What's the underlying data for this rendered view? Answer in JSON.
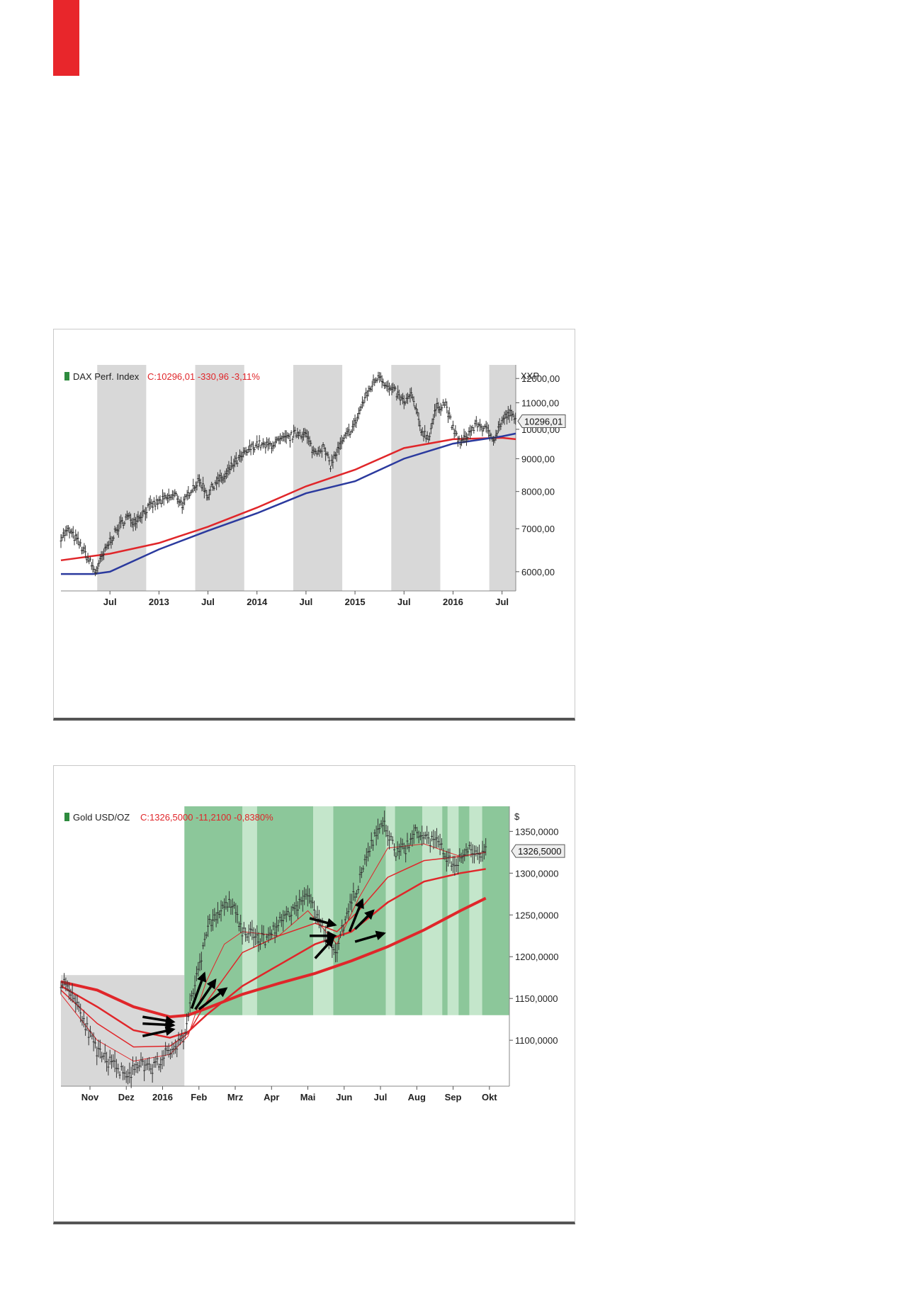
{
  "colors": {
    "accent": "#e8262b",
    "ma_red": "#e0262a",
    "ma_blue": "#2b3a9e",
    "shade_grey": "#d8d8d8",
    "shade_green": "#8cc79a",
    "shade_lightgreen": "#c4e6cb"
  },
  "chart_data": [
    {
      "type": "line",
      "title": "DAX Perf. Index",
      "quote": "C:10296,01 -330,96 -3,11%",
      "axis_unit": "XXP",
      "last_value_label": "10296,01",
      "scale": "log",
      "ylim": [
        5600,
        12600
      ],
      "yticks": [
        6000,
        7000,
        8000,
        9000,
        10000,
        11000,
        12000
      ],
      "ytick_labels": [
        "6000,00",
        "7000,00",
        "8000,00",
        "9000,00",
        "10000,00",
        "11000,00",
        "12000,00"
      ],
      "x_range": [
        "2012-05",
        "2016-09"
      ],
      "xticks": [
        {
          "t": 2012.5,
          "label": "Jul"
        },
        {
          "t": 2013.0,
          "label": "2013"
        },
        {
          "t": 2013.5,
          "label": "Jul"
        },
        {
          "t": 2014.0,
          "label": "2014"
        },
        {
          "t": 2014.5,
          "label": "Jul"
        },
        {
          "t": 2015.0,
          "label": "2015"
        },
        {
          "t": 2015.5,
          "label": "Jul"
        },
        {
          "t": 2016.0,
          "label": "2016"
        },
        {
          "t": 2016.5,
          "label": "Jul"
        }
      ],
      "shaded_periods": [
        [
          2012.37,
          2012.87
        ],
        [
          2013.37,
          2013.87
        ],
        [
          2014.37,
          2014.87
        ],
        [
          2015.37,
          2015.87
        ],
        [
          2016.37,
          2016.64
        ]
      ],
      "series": [
        {
          "kind": "price",
          "x": [
            2012.0,
            2012.08,
            2012.17,
            2012.25,
            2012.35,
            2012.42,
            2012.5,
            2012.58,
            2012.67,
            2012.75,
            2012.83,
            2012.92,
            2013.0,
            2013.08,
            2013.17,
            2013.25,
            2013.33,
            2013.42,
            2013.5,
            2013.58,
            2013.67,
            2013.75,
            2013.83,
            2013.92,
            2014.0,
            2014.08,
            2014.17,
            2014.25,
            2014.33,
            2014.42,
            2014.5,
            2014.58,
            2014.67,
            2014.75,
            2014.83,
            2014.92,
            2015.0,
            2015.08,
            2015.17,
            2015.25,
            2015.33,
            2015.42,
            2015.5,
            2015.58,
            2015.67,
            2015.75,
            2015.83,
            2015.92,
            2016.0,
            2016.08,
            2016.17,
            2016.25,
            2016.33,
            2016.42,
            2016.5,
            2016.58,
            2016.64
          ],
          "values": [
            6800,
            6950,
            6700,
            6400,
            6000,
            6300,
            6700,
            7000,
            7300,
            7200,
            7400,
            7600,
            7700,
            7800,
            7900,
            7600,
            8100,
            8300,
            7900,
            8300,
            8400,
            8800,
            9000,
            9300,
            9500,
            9400,
            9500,
            9600,
            9700,
            9900,
            9800,
            9200,
            9400,
            8800,
            9300,
            9800,
            10200,
            11000,
            11700,
            12200,
            11600,
            11400,
            11000,
            11300,
            10000,
            9700,
            10800,
            11000,
            10000,
            9500,
            9900,
            10200,
            10000,
            9700,
            10300,
            10600,
            10296
          ]
        },
        {
          "kind": "moving_average",
          "color": "red",
          "x": [
            2012.0,
            2012.5,
            2013.0,
            2013.5,
            2014.0,
            2014.5,
            2015.0,
            2015.5,
            2016.0,
            2016.5,
            2016.64
          ],
          "values": [
            6250,
            6400,
            6650,
            7050,
            7550,
            8150,
            8650,
            9350,
            9650,
            9700,
            9650
          ]
        },
        {
          "kind": "moving_average",
          "color": "blue",
          "x": [
            2012.0,
            2012.33,
            2012.5,
            2013.0,
            2013.5,
            2014.0,
            2014.5,
            2015.0,
            2015.5,
            2016.0,
            2016.5,
            2016.64
          ],
          "values": [
            5950,
            5950,
            6000,
            6500,
            6950,
            7400,
            7950,
            8300,
            9000,
            9500,
            9750,
            9850
          ]
        }
      ]
    },
    {
      "type": "line",
      "title": "Gold USD/OZ",
      "quote": "C:1326,5000 -11,2100 -0,8380%",
      "axis_unit": "$",
      "last_value_label": "1326,5000",
      "ylim": [
        1045,
        1380
      ],
      "yticks": [
        1100,
        1150,
        1200,
        1250,
        1300,
        1350
      ],
      "ytick_labels": [
        "1100,0000",
        "1150,0000",
        "1200,0000",
        "1250,0000",
        "1300,0000",
        "1350,0000"
      ],
      "x_range": [
        "2015-10-24",
        "2016-10-05"
      ],
      "xticks": [
        {
          "t": 0.8,
          "label": "Nov"
        },
        {
          "t": 1.8,
          "label": "Dez"
        },
        {
          "t": 2.8,
          "label": "2016"
        },
        {
          "t": 3.8,
          "label": "Feb"
        },
        {
          "t": 4.8,
          "label": "Mrz"
        },
        {
          "t": 5.8,
          "label": "Apr"
        },
        {
          "t": 6.8,
          "label": "Mai"
        },
        {
          "t": 7.8,
          "label": "Jun"
        },
        {
          "t": 8.8,
          "label": "Jul"
        },
        {
          "t": 9.8,
          "label": "Aug"
        },
        {
          "t": 10.8,
          "label": "Sep"
        },
        {
          "t": 11.8,
          "label": "Okt"
        }
      ],
      "shaded_periods": [
        {
          "from": 0,
          "to": 3.4,
          "ymin": 1045,
          "ymax": 1178,
          "tone": "grey"
        },
        {
          "from": 3.4,
          "to": 5.0,
          "ymin": 1130,
          "ymax": 1380,
          "tone": "green"
        },
        {
          "from": 5.0,
          "to": 5.4,
          "ymin": 1130,
          "ymax": 1380,
          "tone": "lightgreen"
        },
        {
          "from": 5.4,
          "to": 6.95,
          "ymin": 1130,
          "ymax": 1380,
          "tone": "green"
        },
        {
          "from": 6.95,
          "to": 7.5,
          "ymin": 1130,
          "ymax": 1380,
          "tone": "lightgreen"
        },
        {
          "from": 7.5,
          "to": 8.95,
          "ymin": 1130,
          "ymax": 1380,
          "tone": "green"
        },
        {
          "from": 8.95,
          "to": 9.2,
          "ymin": 1130,
          "ymax": 1380,
          "tone": "lightgreen"
        },
        {
          "from": 9.2,
          "to": 9.95,
          "ymin": 1130,
          "ymax": 1380,
          "tone": "green"
        },
        {
          "from": 9.95,
          "to": 10.5,
          "ymin": 1130,
          "ymax": 1380,
          "tone": "lightgreen"
        },
        {
          "from": 10.5,
          "to": 10.65,
          "ymin": 1130,
          "ymax": 1380,
          "tone": "green"
        },
        {
          "from": 10.65,
          "to": 10.95,
          "ymin": 1130,
          "ymax": 1380,
          "tone": "lightgreen"
        },
        {
          "from": 10.95,
          "to": 11.25,
          "ymin": 1130,
          "ymax": 1380,
          "tone": "green"
        },
        {
          "from": 11.25,
          "to": 11.6,
          "ymin": 1130,
          "ymax": 1380,
          "tone": "lightgreen"
        },
        {
          "from": 11.6,
          "to": 12.35,
          "ymin": 1130,
          "ymax": 1380,
          "tone": "green"
        }
      ],
      "series": [
        {
          "kind": "price",
          "x": [
            0.0,
            0.2,
            0.5,
            0.8,
            1.0,
            1.3,
            1.6,
            1.9,
            2.2,
            2.5,
            2.8,
            3.1,
            3.4,
            3.6,
            3.8,
            4.1,
            4.4,
            4.7,
            5.0,
            5.3,
            5.6,
            5.9,
            6.2,
            6.5,
            6.8,
            7.1,
            7.4,
            7.6,
            7.8,
            8.0,
            8.3,
            8.6,
            8.9,
            9.2,
            9.5,
            9.8,
            10.1,
            10.4,
            10.7,
            10.9,
            11.2,
            11.5,
            11.7
          ],
          "values": [
            1170,
            1165,
            1140,
            1105,
            1085,
            1075,
            1065,
            1060,
            1070,
            1065,
            1080,
            1090,
            1105,
            1150,
            1190,
            1240,
            1255,
            1265,
            1230,
            1225,
            1220,
            1235,
            1250,
            1260,
            1275,
            1245,
            1215,
            1210,
            1240,
            1265,
            1300,
            1340,
            1360,
            1325,
            1330,
            1350,
            1340,
            1335,
            1315,
            1310,
            1330,
            1325,
            1326.5
          ]
        },
        {
          "kind": "moving_average",
          "color": "red",
          "weight": 4,
          "x": [
            0.0,
            1.0,
            2.0,
            3.0,
            3.5,
            4.0,
            5.0,
            6.0,
            7.0,
            8.0,
            9.0,
            10.0,
            11.0,
            11.7
          ],
          "values": [
            1170,
            1160,
            1140,
            1128,
            1130,
            1138,
            1155,
            1168,
            1180,
            1195,
            1212,
            1232,
            1255,
            1270
          ]
        },
        {
          "kind": "moving_average",
          "color": "red",
          "weight": 2.5,
          "x": [
            0.0,
            1.0,
            2.0,
            3.0,
            3.5,
            4.0,
            5.0,
            6.0,
            7.0,
            8.0,
            9.0,
            10.0,
            11.0,
            11.7
          ],
          "values": [
            1165,
            1140,
            1112,
            1103,
            1110,
            1130,
            1165,
            1190,
            1215,
            1230,
            1265,
            1290,
            1300,
            1305
          ]
        },
        {
          "kind": "moving_average",
          "color": "red",
          "weight": 1.5,
          "x": [
            0.0,
            1.0,
            2.0,
            3.0,
            3.5,
            4.0,
            5.0,
            6.0,
            7.0,
            7.6,
            8.2,
            9.0,
            10.0,
            11.0,
            11.7
          ],
          "values": [
            1160,
            1120,
            1092,
            1093,
            1108,
            1145,
            1205,
            1225,
            1240,
            1230,
            1255,
            1295,
            1315,
            1320,
            1325
          ]
        },
        {
          "kind": "moving_average",
          "color": "red",
          "weight": 1,
          "x": [
            0.0,
            1.0,
            2.0,
            3.0,
            3.5,
            4.0,
            4.5,
            5.0,
            6.0,
            6.8,
            7.6,
            8.2,
            9.0,
            10.0,
            11.0,
            11.7
          ],
          "values": [
            1155,
            1100,
            1075,
            1083,
            1105,
            1170,
            1215,
            1230,
            1225,
            1255,
            1215,
            1270,
            1330,
            1335,
            1320,
            1325
          ]
        }
      ],
      "arrows": [
        {
          "x1": 2.25,
          "y1": 1128,
          "x2": 3.1,
          "y2": 1122
        },
        {
          "x1": 2.25,
          "y1": 1120,
          "x2": 3.1,
          "y2": 1118
        },
        {
          "x1": 2.25,
          "y1": 1105,
          "x2": 3.1,
          "y2": 1113
        },
        {
          "x1": 3.6,
          "y1": 1138,
          "x2": 3.95,
          "y2": 1180
        },
        {
          "x1": 3.7,
          "y1": 1137,
          "x2": 4.25,
          "y2": 1172
        },
        {
          "x1": 3.8,
          "y1": 1137,
          "x2": 4.55,
          "y2": 1162
        },
        {
          "x1": 6.85,
          "y1": 1246,
          "x2": 7.55,
          "y2": 1238
        },
        {
          "x1": 6.85,
          "y1": 1225,
          "x2": 7.55,
          "y2": 1225
        },
        {
          "x1": 7.0,
          "y1": 1198,
          "x2": 7.5,
          "y2": 1222
        },
        {
          "x1": 7.95,
          "y1": 1230,
          "x2": 8.3,
          "y2": 1268
        },
        {
          "x1": 8.1,
          "y1": 1233,
          "x2": 8.6,
          "y2": 1255
        },
        {
          "x1": 8.1,
          "y1": 1218,
          "x2": 8.9,
          "y2": 1228
        }
      ]
    }
  ]
}
